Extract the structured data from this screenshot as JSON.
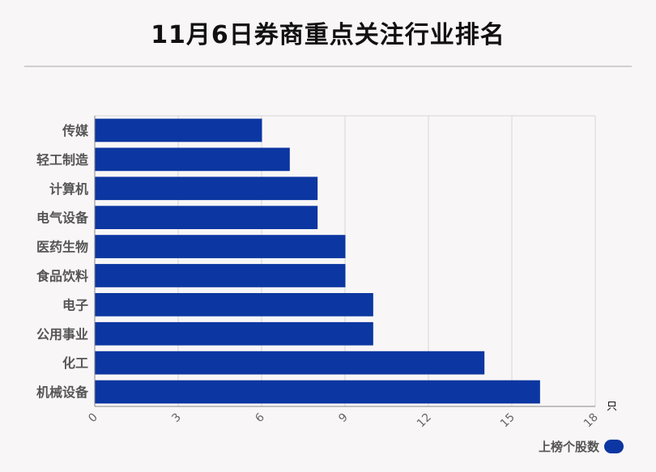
{
  "title": "11月6日券商重点关注行业排名",
  "chart_data": {
    "type": "bar",
    "orientation": "horizontal",
    "categories": [
      "传媒",
      "轻工制造",
      "计算机",
      "电气设备",
      "医药生物",
      "食品饮料",
      "电子",
      "公用事业",
      "化工",
      "机械设备"
    ],
    "series": [
      {
        "name": "上榜个股数",
        "values": [
          6,
          7,
          8,
          8,
          9,
          9,
          10,
          10,
          14,
          16
        ],
        "color": "#0c36a1"
      }
    ],
    "xlim": [
      0,
      18
    ],
    "xticks": [
      "0",
      "3",
      "6",
      "9",
      "12",
      "15",
      "18"
    ],
    "x_unit": "只",
    "grid": true,
    "legend_position": "bottom-right"
  }
}
